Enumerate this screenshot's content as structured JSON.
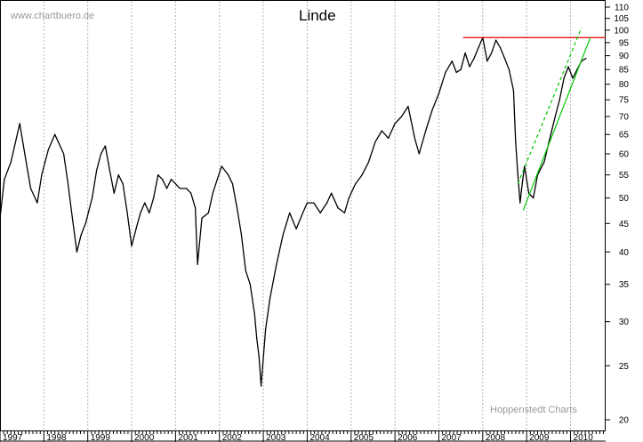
{
  "chart_data": {
    "type": "line",
    "title": "Linde",
    "watermark_top": "www.chartbuero.de",
    "watermark_bottom": "Hoppenstedt Charts",
    "y_scale": "log",
    "ylim": [
      20,
      110
    ],
    "xlim": [
      1997.0,
      2010.8
    ],
    "y_ticks": [
      20,
      25,
      30,
      35,
      40,
      45,
      50,
      55,
      60,
      65,
      70,
      75,
      80,
      85,
      90,
      95,
      100,
      105,
      110
    ],
    "x_ticks": [
      "1997",
      "1998",
      "1999",
      "2000",
      "2001",
      "2002",
      "2003",
      "2004",
      "2005",
      "2006",
      "2007",
      "2008",
      "2009",
      "2010"
    ],
    "grid": "vertical dashed at each year",
    "colors": {
      "price": "#000000",
      "resistance": "#e00000",
      "trend": "#00c800",
      "grid": "#b4b4b4"
    },
    "series": [
      {
        "values": [
          [
            1997.0,
            46
          ],
          [
            1997.1,
            54
          ],
          [
            1997.25,
            58
          ],
          [
            1997.45,
            68
          ],
          [
            1997.55,
            61
          ],
          [
            1997.7,
            52
          ],
          [
            1997.85,
            49
          ],
          [
            1997.95,
            55
          ],
          [
            1998.1,
            61
          ],
          [
            1998.25,
            65
          ],
          [
            1998.45,
            60
          ],
          [
            1998.55,
            53
          ],
          [
            1998.65,
            46
          ],
          [
            1998.75,
            40
          ],
          [
            1998.85,
            43
          ],
          [
            1998.95,
            45
          ],
          [
            1999.1,
            50
          ],
          [
            1999.2,
            56
          ],
          [
            1999.3,
            60
          ],
          [
            1999.4,
            62
          ],
          [
            1999.5,
            56
          ],
          [
            1999.6,
            51
          ],
          [
            1999.7,
            55
          ],
          [
            1999.8,
            53
          ],
          [
            1999.9,
            47
          ],
          [
            2000.0,
            41
          ],
          [
            2000.1,
            44
          ],
          [
            2000.2,
            47
          ],
          [
            2000.3,
            49
          ],
          [
            2000.4,
            47
          ],
          [
            2000.5,
            50
          ],
          [
            2000.6,
            55
          ],
          [
            2000.7,
            54
          ],
          [
            2000.8,
            52
          ],
          [
            2000.9,
            54
          ],
          [
            2001.0,
            53
          ],
          [
            2001.1,
            52
          ],
          [
            2001.25,
            52
          ],
          [
            2001.35,
            51
          ],
          [
            2001.45,
            48
          ],
          [
            2001.5,
            38
          ],
          [
            2001.6,
            46
          ],
          [
            2001.75,
            47
          ],
          [
            2001.85,
            51
          ],
          [
            2001.95,
            54
          ],
          [
            2002.05,
            57
          ],
          [
            2002.2,
            55
          ],
          [
            2002.3,
            53
          ],
          [
            2002.4,
            48
          ],
          [
            2002.5,
            43
          ],
          [
            2002.6,
            37
          ],
          [
            2002.7,
            35
          ],
          [
            2002.8,
            31
          ],
          [
            2002.85,
            28
          ],
          [
            2002.9,
            26
          ],
          [
            2002.95,
            23
          ],
          [
            2003.05,
            29
          ],
          [
            2003.15,
            33
          ],
          [
            2003.3,
            38
          ],
          [
            2003.45,
            43
          ],
          [
            2003.6,
            47
          ],
          [
            2003.75,
            44
          ],
          [
            2003.9,
            47
          ],
          [
            2004.0,
            49
          ],
          [
            2004.15,
            49
          ],
          [
            2004.3,
            47
          ],
          [
            2004.45,
            49
          ],
          [
            2004.55,
            51
          ],
          [
            2004.7,
            48
          ],
          [
            2004.85,
            47
          ],
          [
            2004.95,
            50
          ],
          [
            2005.1,
            53
          ],
          [
            2005.25,
            55
          ],
          [
            2005.4,
            58
          ],
          [
            2005.55,
            63
          ],
          [
            2005.7,
            66
          ],
          [
            2005.85,
            64
          ],
          [
            2006.0,
            68
          ],
          [
            2006.15,
            70
          ],
          [
            2006.3,
            73
          ],
          [
            2006.45,
            64
          ],
          [
            2006.55,
            60
          ],
          [
            2006.7,
            66
          ],
          [
            2006.85,
            72
          ],
          [
            2007.0,
            77
          ],
          [
            2007.15,
            84
          ],
          [
            2007.3,
            88
          ],
          [
            2007.4,
            84
          ],
          [
            2007.5,
            85
          ],
          [
            2007.6,
            91
          ],
          [
            2007.7,
            86
          ],
          [
            2007.8,
            89
          ],
          [
            2007.9,
            93
          ],
          [
            2008.0,
            97
          ],
          [
            2008.1,
            88
          ],
          [
            2008.2,
            91
          ],
          [
            2008.3,
            96
          ],
          [
            2008.4,
            93
          ],
          [
            2008.5,
            89
          ],
          [
            2008.6,
            85
          ],
          [
            2008.7,
            78
          ],
          [
            2008.75,
            63
          ],
          [
            2008.8,
            55
          ],
          [
            2008.85,
            49
          ],
          [
            2008.9,
            53
          ],
          [
            2008.95,
            57
          ],
          [
            2009.05,
            51
          ],
          [
            2009.15,
            50
          ],
          [
            2009.25,
            55
          ],
          [
            2009.4,
            58
          ],
          [
            2009.55,
            65
          ],
          [
            2009.65,
            70
          ],
          [
            2009.75,
            75
          ],
          [
            2009.85,
            82
          ],
          [
            2009.95,
            86
          ],
          [
            2010.05,
            82
          ],
          [
            2010.15,
            85
          ],
          [
            2010.25,
            88
          ],
          [
            2010.35,
            89
          ]
        ]
      }
    ],
    "resistance_line": {
      "value": 97,
      "x_start": 2007.55,
      "x_end": 2010.8
    },
    "trend_lines": [
      {
        "style": "solid",
        "start": [
          2008.92,
          47.5
        ],
        "end": [
          2010.45,
          97
        ]
      },
      {
        "style": "dashed",
        "start": [
          2008.8,
          53
        ],
        "end": [
          2010.25,
          101
        ]
      }
    ]
  }
}
